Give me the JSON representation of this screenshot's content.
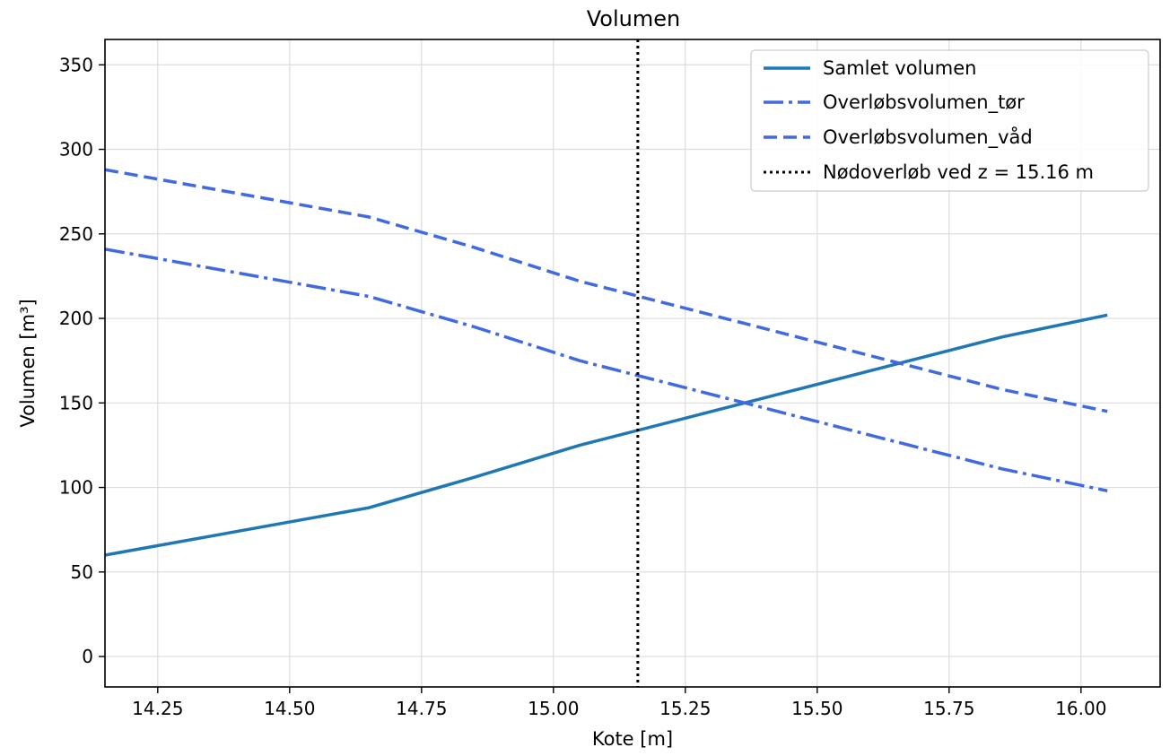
{
  "chart_data": {
    "type": "line",
    "title": "Volumen",
    "xlabel": "Kote [m]",
    "ylabel": "Volumen [m³]",
    "xlim": [
      14.15,
      16.15
    ],
    "ylim": [
      -18,
      365
    ],
    "xticks": [
      14.25,
      14.5,
      14.75,
      15.0,
      15.25,
      15.5,
      15.75,
      16.0
    ],
    "xtick_labels": [
      "14.25",
      "14.50",
      "14.75",
      "15.00",
      "15.25",
      "15.50",
      "15.75",
      "16.00"
    ],
    "yticks": [
      0,
      50,
      100,
      150,
      200,
      250,
      300,
      350
    ],
    "ytick_labels": [
      "0",
      "50",
      "100",
      "150",
      "200",
      "250",
      "300",
      "350"
    ],
    "grid": true,
    "legend_position": "top-right",
    "series": [
      {
        "name": "Samlet volumen",
        "style": "solid",
        "color": "#1f77b4",
        "x": [
          14.15,
          14.65,
          14.85,
          15.05,
          15.25,
          15.45,
          15.65,
          15.85,
          16.05
        ],
        "y": [
          60,
          88,
          106,
          125,
          141,
          157,
          173,
          189,
          202
        ]
      },
      {
        "name": "Overløbsvolumen_tør",
        "style": "dashdot",
        "color": "#4169e1",
        "x": [
          14.15,
          14.65,
          14.85,
          15.05,
          15.25,
          15.45,
          15.65,
          15.85,
          16.05
        ],
        "y": [
          241,
          213,
          195,
          175,
          159,
          143,
          127,
          111,
          98
        ]
      },
      {
        "name": "Overløbsvolumen_våd",
        "style": "dashed",
        "color": "#4169e1",
        "x": [
          14.15,
          14.65,
          14.85,
          15.05,
          15.25,
          15.45,
          15.65,
          15.85,
          16.05
        ],
        "y": [
          288,
          260,
          242,
          222,
          206,
          190,
          174,
          158,
          145
        ]
      }
    ],
    "vline": {
      "name": "Nødoverløb ved z = 15.16 m",
      "x": 15.16,
      "style": "dotted",
      "color": "#000000"
    }
  }
}
